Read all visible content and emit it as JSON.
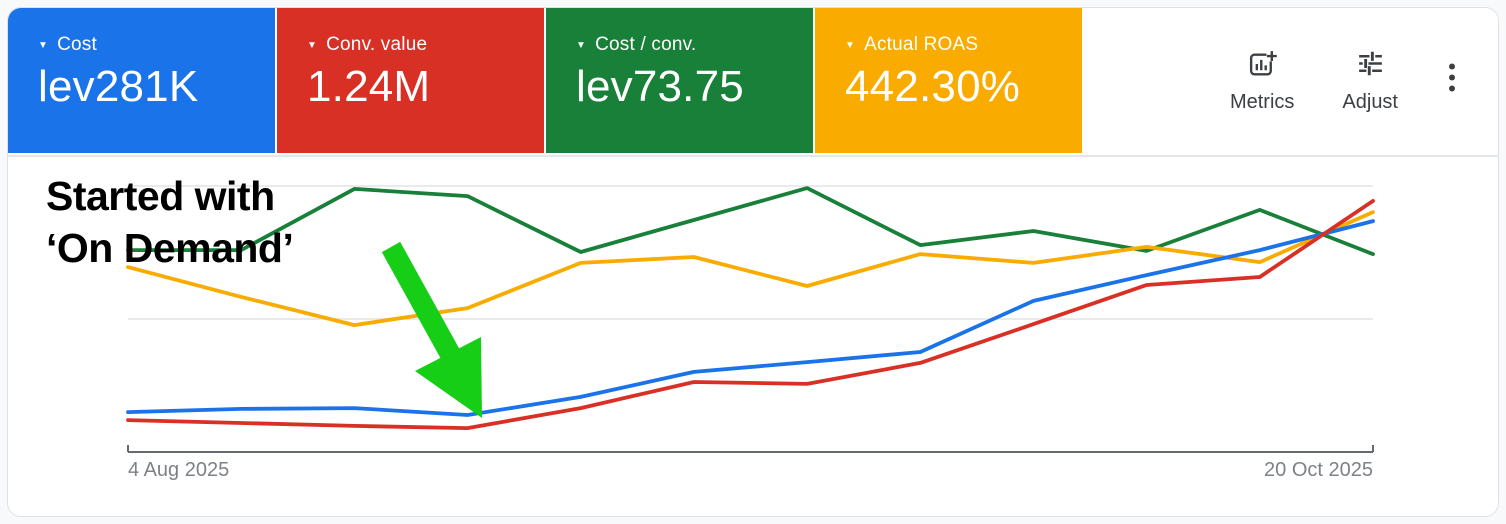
{
  "metric_cards": [
    {
      "label": "Cost",
      "value": "lev281K",
      "color": "#1A73E8"
    },
    {
      "label": "Conv. value",
      "value": "1.24M",
      "color": "#D93025"
    },
    {
      "label": "Cost / conv.",
      "value": "lev73.75",
      "color": "#188038"
    },
    {
      "label": "Actual ROAS",
      "value": "442.30%",
      "color": "#F9AB00"
    }
  ],
  "toolbar": {
    "metrics_label": "Metrics",
    "adjust_label": "Adjust"
  },
  "annotation": {
    "line1": "Started with",
    "line2": "‘On Demand’",
    "arrow_color": "#17CE17"
  },
  "chart_data": {
    "type": "line",
    "title": "",
    "x_tick_labels": [
      "4 Aug 2025",
      "20 Oct 2025"
    ],
    "x_axis_note": "12 weekly points from 4 Aug 2025 to 20 Oct 2025; only first and last dates labeled",
    "y_axis_note": "no y-axis labels shown; values are percent of plot height between bottom axis (0) and top gridline (100)",
    "ylim": [
      0,
      100
    ],
    "grid": "2 light horizontal gridlines plus darker bottom axis, evenly spaced",
    "legend": "none (line colors match scorecard tiles)",
    "series": [
      {
        "name": "Cost",
        "color": "#1A73E8",
        "values": [
          15.0,
          16.2,
          16.5,
          13.9,
          20.7,
          30.1,
          33.8,
          37.6,
          56.8,
          66.5,
          75.9,
          86.8
        ]
      },
      {
        "name": "Conv. value",
        "color": "#D93025",
        "values": [
          12.0,
          10.9,
          9.8,
          9.0,
          16.5,
          26.3,
          25.6,
          33.5,
          48.1,
          62.8,
          65.8,
          94.4
        ]
      },
      {
        "name": "Cost / conv.",
        "color": "#188038",
        "values": [
          75.9,
          75.9,
          98.9,
          96.2,
          75.2,
          87.2,
          99.2,
          77.8,
          83.1,
          75.6,
          91.0,
          74.4
        ]
      },
      {
        "name": "Actual ROAS",
        "color": "#F9AB00",
        "values": [
          69.5,
          58.3,
          47.7,
          54.1,
          71.1,
          73.3,
          62.4,
          74.4,
          71.1,
          77.1,
          71.4,
          90.2
        ]
      }
    ]
  }
}
